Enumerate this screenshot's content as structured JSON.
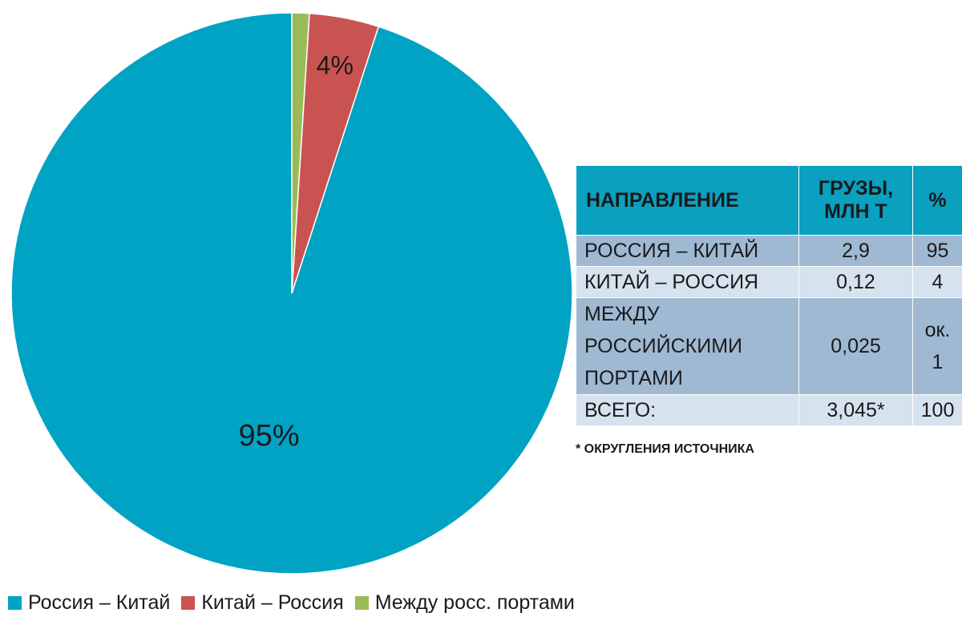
{
  "chart_data": {
    "type": "pie",
    "slices": [
      {
        "name": "Россия – Китай",
        "value": 95,
        "label": "95%",
        "color": "#00a3c4"
      },
      {
        "name": "Китай – Россия",
        "value": 4,
        "label": "4%",
        "color": "#c95350"
      },
      {
        "name": "Между росс. портами",
        "value": 1,
        "label": "",
        "color": "#9bbb59"
      }
    ],
    "legend_position": "bottom-left"
  },
  "table": {
    "headers": [
      "НАПРАВЛЕНИЕ",
      "ГРУЗЫ, МЛН Т",
      "%"
    ],
    "rows": [
      {
        "direction": "РОССИЯ – КИТАЙ",
        "cargo": "2,9",
        "percent": "95"
      },
      {
        "direction": "КИТАЙ – РОССИЯ",
        "cargo": "0,12",
        "percent": "4"
      },
      {
        "direction": "МЕЖДУ РОССИЙСКИМИ ПОРТАМИ",
        "cargo": "0,025",
        "percent": "ок. 1"
      },
      {
        "direction": "ВСЕГО:",
        "cargo": "3,045*",
        "percent": "100"
      }
    ],
    "header_color": "#0aa0c0",
    "row_colors": [
      "#9fb9d3",
      "#d6e2ee"
    ]
  },
  "footnote": "* ОКРУГЛЕНИЯ ИСТОЧНИКА"
}
